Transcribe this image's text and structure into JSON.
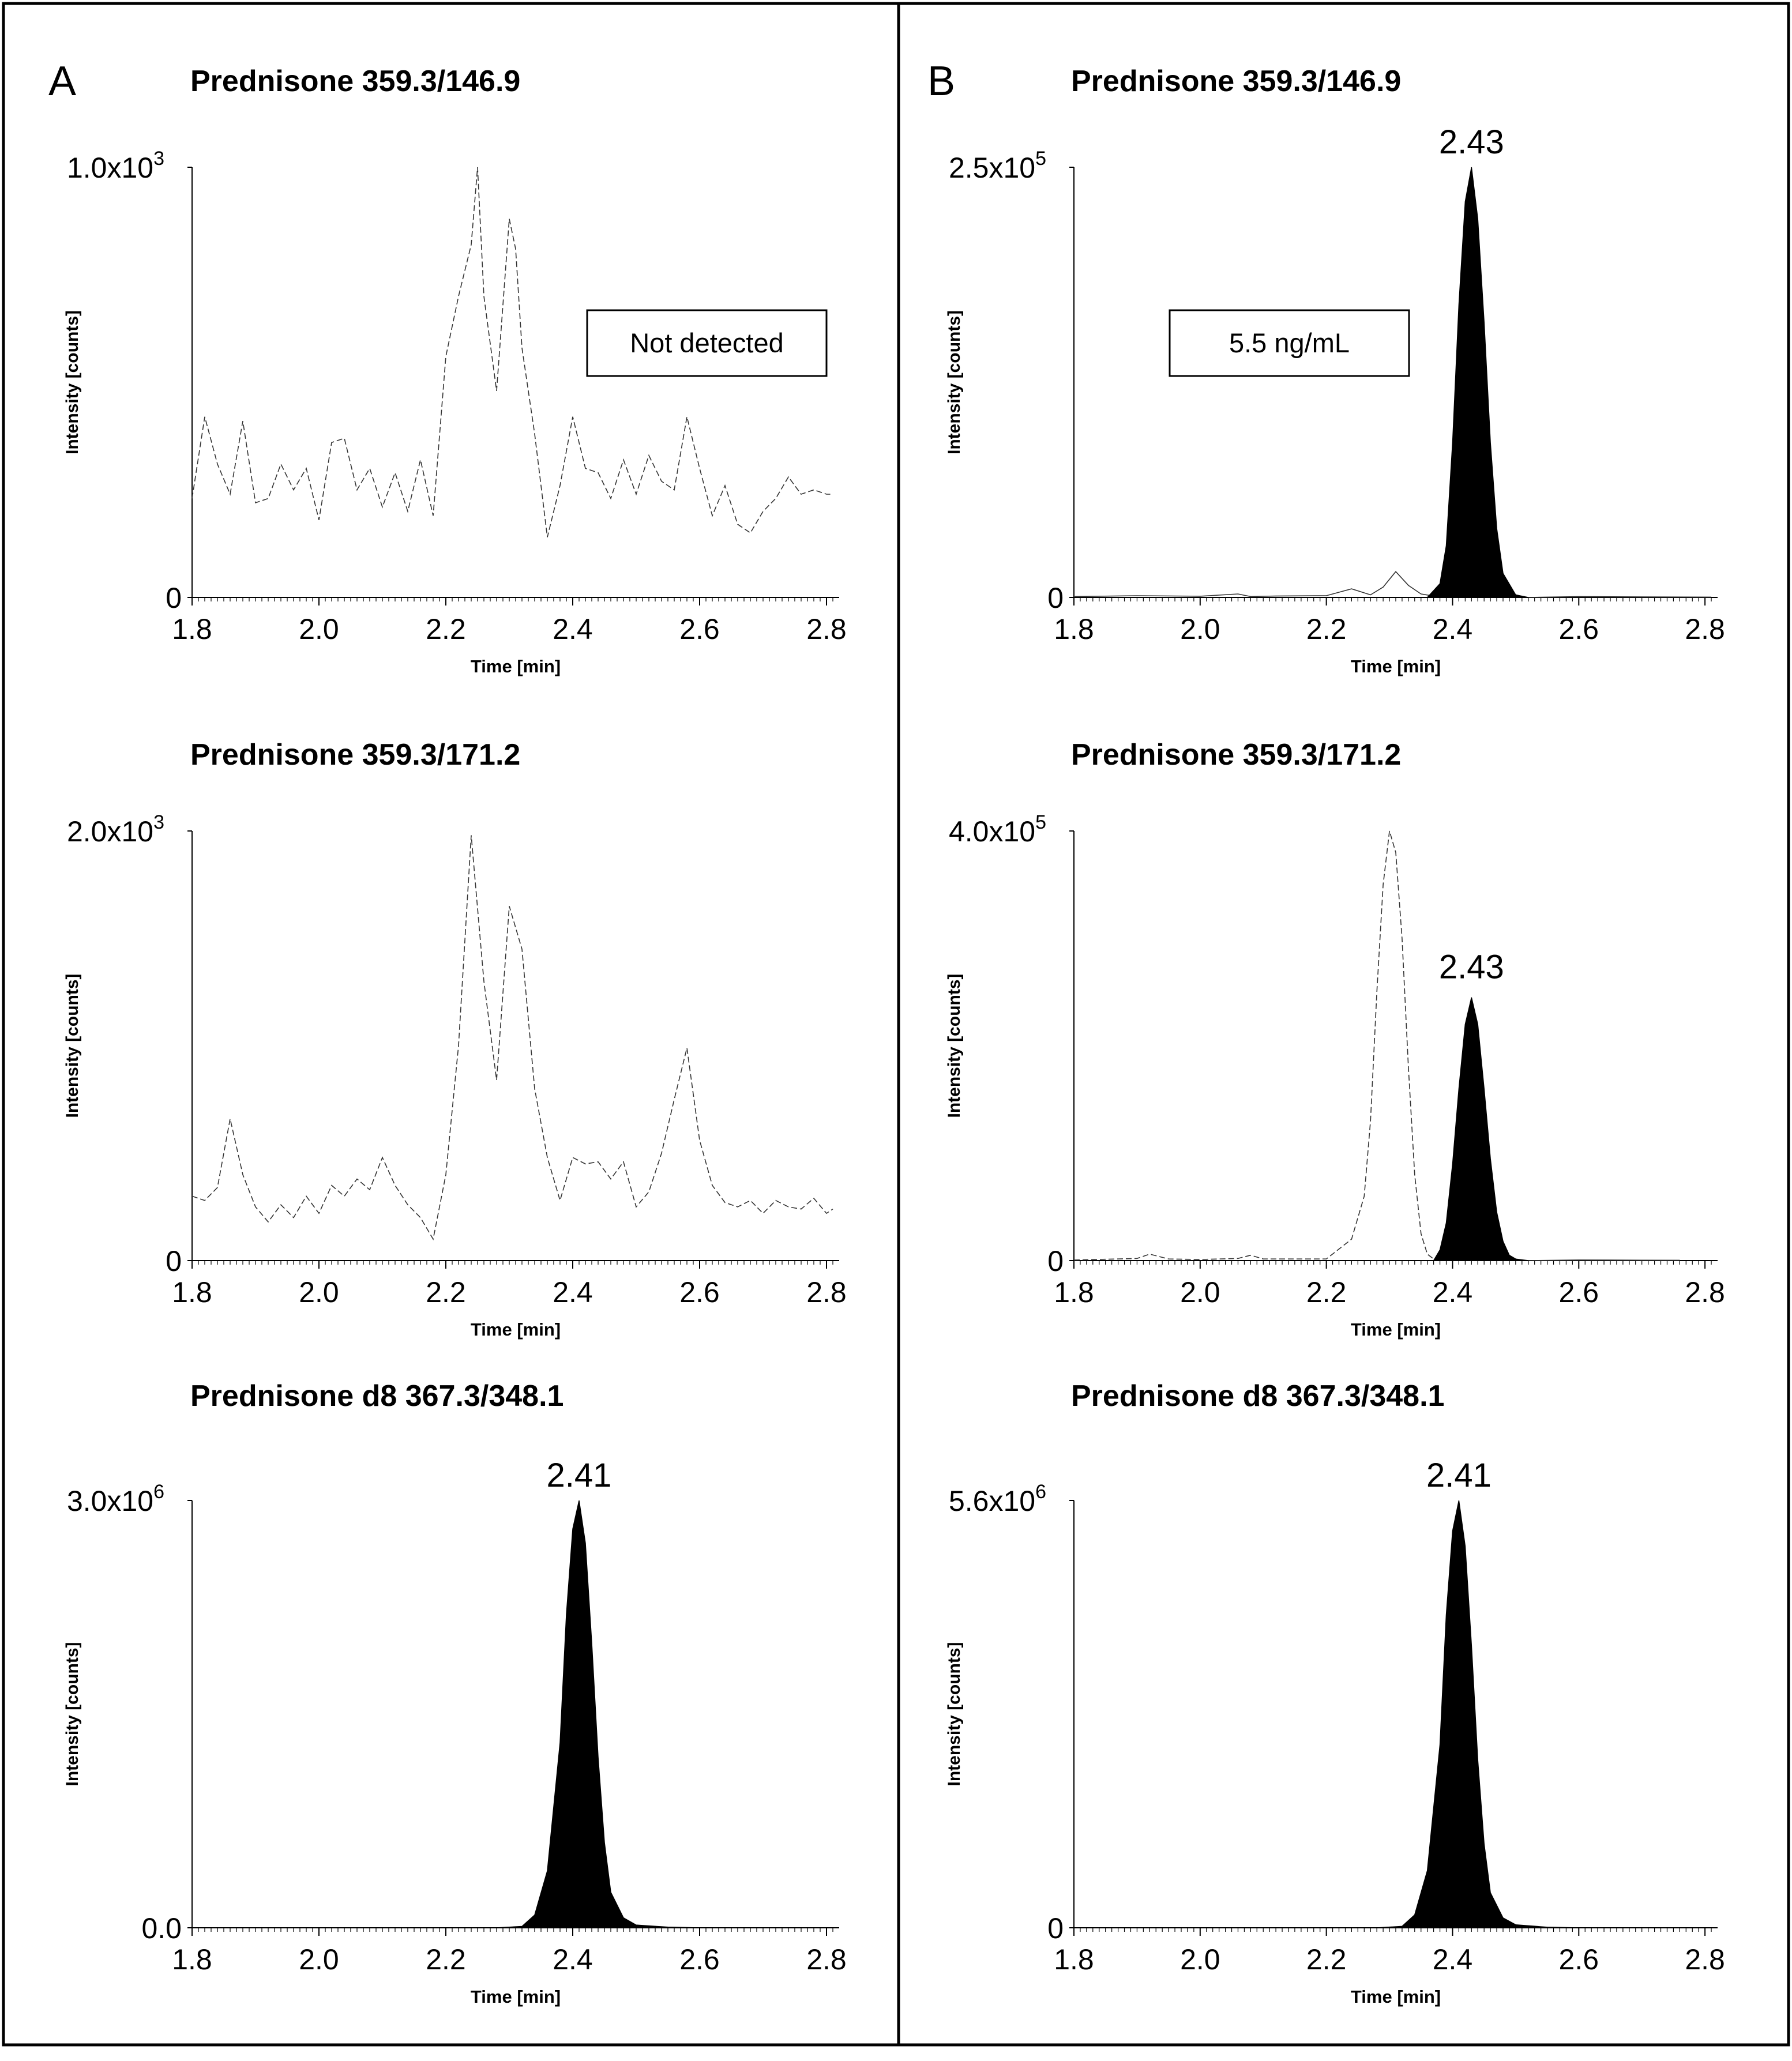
{
  "panels": [
    {
      "label": "A"
    },
    {
      "label": "B"
    }
  ],
  "chart_data": [
    {
      "type": "line",
      "panel": "A",
      "title": "Prednisone 359.3/146.9",
      "xlabel": "Time [min]",
      "ylabel": "Intensity [counts]",
      "xlim": [
        1.8,
        2.82
      ],
      "xticks": [
        1.8,
        2.0,
        2.2,
        2.4,
        2.6,
        2.8
      ],
      "xtick_labels": [
        "1.8",
        "2.0",
        "2.2",
        "2.4",
        "2.6",
        "2.8"
      ],
      "ylim": [
        0,
        1000
      ],
      "ytick_labels": [
        {
          "value": 0,
          "label": "0"
        },
        {
          "value": 1000,
          "label": "1.0x10",
          "exp": "3"
        }
      ],
      "annotation": "Not detected",
      "series": [
        {
          "name": "Prednisone 359.3/146.9",
          "style": "noise",
          "fill": false,
          "x": [
            1.8,
            1.82,
            1.84,
            1.86,
            1.88,
            1.9,
            1.92,
            1.94,
            1.96,
            1.98,
            2.0,
            2.02,
            2.04,
            2.06,
            2.08,
            2.1,
            2.12,
            2.14,
            2.16,
            2.18,
            2.2,
            2.22,
            2.24,
            2.25,
            2.26,
            2.28,
            2.3,
            2.31,
            2.32,
            2.34,
            2.36,
            2.38,
            2.4,
            2.42,
            2.44,
            2.46,
            2.48,
            2.5,
            2.52,
            2.54,
            2.56,
            2.58,
            2.6,
            2.62,
            2.64,
            2.66,
            2.68,
            2.7,
            2.72,
            2.74,
            2.76,
            2.78,
            2.8,
            2.81
          ],
          "y": [
            230,
            420,
            310,
            240,
            410,
            220,
            230,
            310,
            250,
            300,
            180,
            360,
            370,
            250,
            300,
            210,
            290,
            200,
            320,
            190,
            560,
            700,
            820,
            1000,
            700,
            480,
            880,
            810,
            580,
            380,
            140,
            260,
            420,
            300,
            290,
            230,
            320,
            240,
            330,
            270,
            250,
            420,
            300,
            190,
            260,
            170,
            150,
            200,
            230,
            280,
            240,
            250,
            240,
            240
          ]
        }
      ]
    },
    {
      "type": "line",
      "panel": "A",
      "title": "Prednisone 359.3/171.2",
      "xlabel": "Time [min]",
      "ylabel": "Intensity [counts]",
      "xlim": [
        1.8,
        2.82
      ],
      "xticks": [
        1.8,
        2.0,
        2.2,
        2.4,
        2.6,
        2.8
      ],
      "xtick_labels": [
        "1.8",
        "2.0",
        "2.2",
        "2.4",
        "2.6",
        "2.8"
      ],
      "ylim": [
        0,
        2000
      ],
      "ytick_labels": [
        {
          "value": 0,
          "label": "0"
        },
        {
          "value": 2000,
          "label": "2.0x10",
          "exp": "3"
        }
      ],
      "series": [
        {
          "name": "Prednisone 359.3/171.2",
          "style": "noise",
          "fill": false,
          "x": [
            1.8,
            1.82,
            1.84,
            1.86,
            1.88,
            1.9,
            1.92,
            1.94,
            1.96,
            1.98,
            2.0,
            2.02,
            2.04,
            2.06,
            2.08,
            2.1,
            2.12,
            2.14,
            2.16,
            2.18,
            2.2,
            2.22,
            2.24,
            2.26,
            2.28,
            2.3,
            2.32,
            2.34,
            2.36,
            2.38,
            2.4,
            2.42,
            2.44,
            2.46,
            2.48,
            2.5,
            2.52,
            2.54,
            2.56,
            2.58,
            2.6,
            2.62,
            2.64,
            2.66,
            2.68,
            2.7,
            2.72,
            2.74,
            2.76,
            2.78,
            2.8,
            2.81
          ],
          "y": [
            300,
            280,
            340,
            660,
            400,
            250,
            180,
            260,
            200,
            300,
            220,
            350,
            300,
            380,
            330,
            480,
            350,
            260,
            200,
            100,
            400,
            1000,
            1980,
            1300,
            840,
            1650,
            1450,
            800,
            480,
            280,
            480,
            450,
            460,
            380,
            460,
            250,
            320,
            500,
            750,
            990,
            560,
            350,
            270,
            250,
            280,
            220,
            280,
            250,
            240,
            290,
            220,
            240
          ]
        }
      ]
    },
    {
      "type": "area",
      "panel": "A",
      "title": "Prednisone d8 367.3/348.1",
      "xlabel": "Time [min]",
      "ylabel": "Intensity [counts]",
      "xlim": [
        1.8,
        2.82
      ],
      "xticks": [
        1.8,
        2.0,
        2.2,
        2.4,
        2.6,
        2.8
      ],
      "xtick_labels": [
        "1.8",
        "2.0",
        "2.2",
        "2.4",
        "2.6",
        "2.8"
      ],
      "ylim": [
        0,
        3000000
      ],
      "ytick_labels": [
        {
          "value": 0,
          "label": "0.0"
        },
        {
          "value": 3000000,
          "label": "3.0x10",
          "exp": "6"
        }
      ],
      "peak_label": {
        "x": 2.41,
        "y": 3000000,
        "label": "2.41"
      },
      "series": [
        {
          "name": "Prednisone d8 367.3/348.1",
          "style": "solid",
          "fill": true,
          "x": [
            1.8,
            2.28,
            2.32,
            2.34,
            2.36,
            2.38,
            2.39,
            2.4,
            2.41,
            2.42,
            2.43,
            2.44,
            2.45,
            2.46,
            2.48,
            2.5,
            2.55,
            2.6
          ],
          "y": [
            0,
            0,
            10000,
            90000,
            400000,
            1300000,
            2200000,
            2800000,
            3000000,
            2700000,
            2000000,
            1200000,
            600000,
            250000,
            70000,
            20000,
            5000,
            0
          ]
        }
      ]
    },
    {
      "type": "area",
      "panel": "B",
      "title": "Prednisone 359.3/146.9",
      "xlabel": "Time [min]",
      "ylabel": "Intensity [counts]",
      "xlim": [
        1.8,
        2.82
      ],
      "xticks": [
        1.8,
        2.0,
        2.2,
        2.4,
        2.6,
        2.8
      ],
      "xtick_labels": [
        "1.8",
        "2.0",
        "2.2",
        "2.4",
        "2.6",
        "2.8"
      ],
      "ylim": [
        0,
        250000
      ],
      "ytick_labels": [
        {
          "value": 0,
          "label": "0"
        },
        {
          "value": 250000,
          "label": "2.5x10",
          "exp": "5"
        }
      ],
      "annotation": "5.5 ng/mL",
      "peak_label": {
        "x": 2.43,
        "y": 250000,
        "label": "2.43"
      },
      "series": [
        {
          "name": "baseline",
          "style": "solid",
          "fill": false,
          "x": [
            1.8,
            1.9,
            2.0,
            2.06,
            2.08,
            2.12,
            2.2,
            2.24,
            2.27,
            2.29,
            2.31,
            2.33,
            2.35,
            2.37
          ],
          "y": [
            500,
            1000,
            700,
            2000,
            500,
            800,
            1000,
            5000,
            1500,
            6000,
            15000,
            7000,
            2000,
            800
          ]
        },
        {
          "name": "Prednisone 359.3/146.9",
          "style": "solid",
          "fill": true,
          "x": [
            2.36,
            2.38,
            2.39,
            2.4,
            2.41,
            2.42,
            2.43,
            2.44,
            2.45,
            2.46,
            2.47,
            2.48,
            2.5,
            2.52
          ],
          "y": [
            0,
            8000,
            30000,
            90000,
            170000,
            230000,
            250000,
            220000,
            160000,
            90000,
            40000,
            14000,
            1500,
            0
          ]
        },
        {
          "name": "tail",
          "style": "solid",
          "fill": false,
          "x": [
            2.52,
            2.6,
            2.7,
            2.81
          ],
          "y": [
            0,
            500,
            300,
            200
          ]
        }
      ]
    },
    {
      "type": "area",
      "panel": "B",
      "title": "Prednisone 359.3/171.2",
      "xlabel": "Time [min]",
      "ylabel": "Intensity [counts]",
      "xlim": [
        1.8,
        2.82
      ],
      "xticks": [
        1.8,
        2.0,
        2.2,
        2.4,
        2.6,
        2.8
      ],
      "xtick_labels": [
        "1.8",
        "2.0",
        "2.2",
        "2.4",
        "2.6",
        "2.8"
      ],
      "ylim": [
        0,
        400000
      ],
      "ytick_labels": [
        {
          "value": 0,
          "label": "0"
        },
        {
          "value": 400000,
          "label": "4.0x10",
          "exp": "5"
        }
      ],
      "peak_label": {
        "x": 2.43,
        "y": 250000,
        "label": "2.43"
      },
      "series": [
        {
          "name": "interference",
          "style": "dashed",
          "fill": false,
          "x": [
            1.8,
            1.9,
            1.92,
            1.95,
            2.0,
            2.06,
            2.08,
            2.1,
            2.2,
            2.24,
            2.26,
            2.27,
            2.28,
            2.29,
            2.3,
            2.31,
            2.32,
            2.33,
            2.34,
            2.35,
            2.36,
            2.37
          ],
          "y": [
            500,
            2000,
            6000,
            1500,
            1000,
            2000,
            5000,
            1500,
            1500,
            20000,
            60000,
            130000,
            250000,
            350000,
            400000,
            380000,
            300000,
            180000,
            80000,
            25000,
            6000,
            1500
          ]
        },
        {
          "name": "Prednisone 359.3/171.2",
          "style": "solid",
          "fill": true,
          "x": [
            2.37,
            2.38,
            2.39,
            2.4,
            2.41,
            2.42,
            2.43,
            2.44,
            2.45,
            2.46,
            2.47,
            2.48,
            2.49,
            2.5,
            2.52
          ],
          "y": [
            0,
            10000,
            35000,
            90000,
            160000,
            220000,
            245000,
            220000,
            160000,
            95000,
            45000,
            18000,
            5000,
            1500,
            0
          ]
        },
        {
          "name": "tail",
          "style": "solid",
          "fill": false,
          "x": [
            2.52,
            2.6,
            2.7,
            2.76
          ],
          "y": [
            0,
            600,
            400,
            300
          ]
        }
      ]
    },
    {
      "type": "area",
      "panel": "B",
      "title": "Prednisone d8 367.3/348.1",
      "xlabel": "Time [min]",
      "ylabel": "Intensity [counts]",
      "xlim": [
        1.8,
        2.82
      ],
      "xticks": [
        1.8,
        2.0,
        2.2,
        2.4,
        2.6,
        2.8
      ],
      "xtick_labels": [
        "1.8",
        "2.0",
        "2.2",
        "2.4",
        "2.6",
        "2.8"
      ],
      "ylim": [
        0,
        5600000
      ],
      "ytick_labels": [
        {
          "value": 0,
          "label": "0"
        },
        {
          "value": 5600000,
          "label": "5.6x10",
          "exp": "6"
        }
      ],
      "peak_label": {
        "x": 2.41,
        "y": 5600000,
        "label": "2.41"
      },
      "series": [
        {
          "name": "Prednisone d8 367.3/348.1",
          "style": "solid",
          "fill": true,
          "x": [
            1.8,
            2.28,
            2.32,
            2.34,
            2.36,
            2.38,
            2.39,
            2.4,
            2.41,
            2.42,
            2.43,
            2.44,
            2.45,
            2.46,
            2.48,
            2.5,
            2.55,
            2.6
          ],
          "y": [
            0,
            0,
            20000,
            170000,
            750000,
            2400000,
            4100000,
            5200000,
            5600000,
            5000000,
            3700000,
            2200000,
            1100000,
            460000,
            130000,
            40000,
            8000,
            0
          ]
        }
      ]
    }
  ]
}
